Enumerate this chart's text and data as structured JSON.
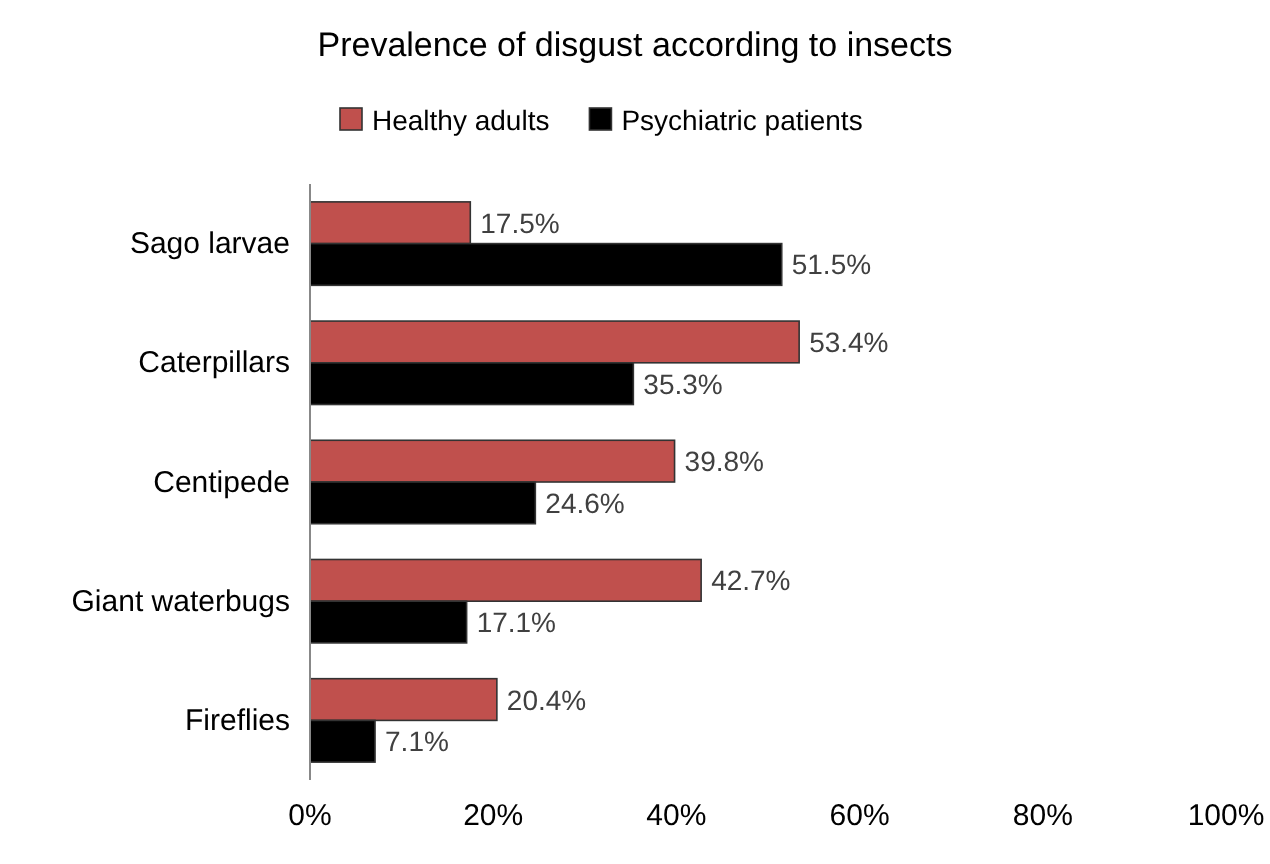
{
  "chart_data": {
    "type": "bar",
    "orientation": "horizontal",
    "title": "Prevalence of disgust according to insects",
    "categories": [
      "Sago larvae",
      "Caterpillars",
      "Centipede",
      "Giant waterbugs",
      "Fireflies"
    ],
    "series": [
      {
        "name": "Healthy adults",
        "color": "#c0504d",
        "values": [
          17.5,
          53.4,
          39.8,
          42.7,
          20.4
        ],
        "value_labels": [
          "17.5%",
          "53.4%",
          "39.8%",
          "42.7%",
          "20.4%"
        ]
      },
      {
        "name": "Psychiatric patients",
        "color": "#000000",
        "values": [
          51.5,
          35.3,
          24.6,
          17.1,
          7.1
        ],
        "value_labels": [
          "51.5%",
          "35.3%",
          "24.6%",
          "17.1%",
          "7.1%"
        ]
      }
    ],
    "xlim": [
      0,
      100
    ],
    "xticks": [
      {
        "value": 0,
        "label": "0%"
      },
      {
        "value": 20,
        "label": "20%"
      },
      {
        "value": 40,
        "label": "40%"
      },
      {
        "value": 60,
        "label": "60%"
      },
      {
        "value": 80,
        "label": "80%"
      },
      {
        "value": 100,
        "label": "100%"
      }
    ],
    "grid": false,
    "legend": "top"
  }
}
